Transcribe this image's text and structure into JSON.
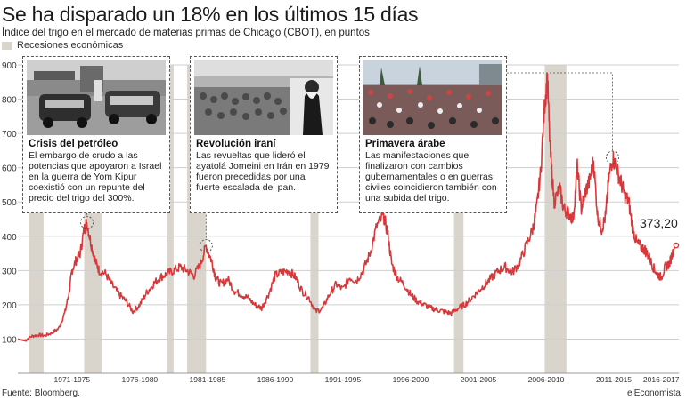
{
  "header": {
    "title": "Se ha disparado un 18% en los últimos 15 días",
    "subtitle": "Índice del trigo en el mercado de materias primas de Chicago (CBOT), en puntos",
    "legend": "Recesiones económicas"
  },
  "footer": {
    "source": "Fuente: Bloomberg.",
    "brand": "elEconomista"
  },
  "callouts": [
    {
      "title": "Crisis del petróleo",
      "text": "El embargo de crudo a las potencias que apoyaron a Israel en la guerra de Yom Kipur coexistió con un repunte del precio del trigo del 300%.",
      "photo": "gas-station-photo"
    },
    {
      "title": "Revolución iraní",
      "text": "Las revueltas que lideró el ayatolá Jomeini en Irán en 1979 fueron precedidas por una fuerte escalada del pan.",
      "photo": "crowd-leader-photo"
    },
    {
      "title": "Primavera árabe",
      "text": "Las manifestaciones que finalizaron con cambios gubernamentales o en guerras civiles coincidieron también con una subida del trigo.",
      "photo": "protest-crowd-photo"
    }
  ],
  "colors": {
    "line": "#d8383a",
    "recession": "#d9d4cc",
    "grid": "#cfcfcf"
  },
  "chart_data": {
    "type": "line",
    "title": "Se ha disparado un 18% en los últimos 15 días",
    "subtitle": "Índice del trigo en el mercado de materias primas de Chicago (CBOT), en puntos",
    "ylim": [
      0,
      900
    ],
    "xlim": [
      1969.0,
      2017.8
    ],
    "yticks": [
      100,
      200,
      300,
      400,
      500,
      600,
      700,
      800,
      900
    ],
    "ytick_labels": [
      "100",
      "200",
      "300",
      "400",
      "500",
      "600",
      "700",
      "800",
      "900"
    ],
    "xtick_labels": [
      "1971-1975",
      "1976-1980",
      "1981-1985",
      "1986-1990",
      "1991-1995",
      "1996-2000",
      "2001-2005",
      "2006-2010",
      "2011-2015",
      "2016-2017"
    ],
    "xtick_centers": [
      1973.0,
      1978.0,
      1983.0,
      1988.0,
      1993.0,
      1998.0,
      2003.0,
      2008.0,
      2013.0,
      2016.5
    ],
    "grid": "horizontal",
    "last_value_label": "373,20",
    "recessions": [
      [
        1969.8,
        1970.9
      ],
      [
        1973.9,
        1975.2
      ],
      [
        1980.0,
        1980.5
      ],
      [
        1981.5,
        1982.9
      ],
      [
        1990.6,
        1991.2
      ],
      [
        2001.2,
        2001.9
      ],
      [
        2007.9,
        2009.5
      ]
    ],
    "series": [
      {
        "x": [
          1969.0,
          1969.5,
          1970.0,
          1970.5,
          1971.0,
          1971.5,
          1972.0,
          1972.5,
          1972.8,
          1973.0,
          1973.3,
          1973.6,
          1973.9,
          1974.1,
          1974.4,
          1974.7,
          1975.0,
          1975.5,
          1976.0,
          1976.5,
          1977.0,
          1977.5,
          1978.0,
          1978.5,
          1979.0,
          1979.5,
          1980.0,
          1980.5,
          1981.0,
          1981.5,
          1982.0,
          1982.5,
          1982.9,
          1983.3,
          1983.6,
          1984.0,
          1984.5,
          1985.0,
          1985.5,
          1986.0,
          1986.5,
          1987.0,
          1987.5,
          1988.0,
          1988.5,
          1989.0,
          1989.5,
          1990.0,
          1990.5,
          1991.0,
          1991.5,
          1992.0,
          1992.5,
          1993.0,
          1993.5,
          1994.0,
          1994.5,
          1995.0,
          1995.5,
          1996.0,
          1996.3,
          1996.6,
          1997.0,
          1997.5,
          1998.0,
          1998.5,
          1999.0,
          1999.5,
          2000.0,
          2000.5,
          2001.0,
          2001.5,
          2002.0,
          2002.5,
          2003.0,
          2003.5,
          2004.0,
          2004.5,
          2005.0,
          2005.5,
          2006.0,
          2006.5,
          2007.0,
          2007.3,
          2007.6,
          2007.9,
          2008.1,
          2008.3,
          2008.6,
          2009.0,
          2009.3,
          2009.6,
          2010.0,
          2010.3,
          2010.6,
          2010.9,
          2011.2,
          2011.5,
          2011.8,
          2012.1,
          2012.4,
          2012.6,
          2012.9,
          2013.2,
          2013.5,
          2013.8,
          2014.1,
          2014.4,
          2014.7,
          2015.0,
          2015.3,
          2015.6,
          2015.9,
          2016.2,
          2016.5,
          2016.8,
          2017.1,
          2017.4,
          2017.6
        ],
        "y": [
          100,
          95,
          108,
          112,
          110,
          118,
          130,
          180,
          240,
          300,
          330,
          350,
          420,
          440,
          380,
          330,
          300,
          290,
          255,
          230,
          210,
          180,
          200,
          235,
          260,
          280,
          290,
          300,
          310,
          300,
          285,
          320,
          372,
          330,
          280,
          260,
          275,
          240,
          230,
          220,
          200,
          190,
          230,
          285,
          295,
          300,
          280,
          240,
          220,
          180,
          190,
          230,
          260,
          245,
          280,
          270,
          300,
          350,
          430,
          460,
          410,
          320,
          280,
          260,
          230,
          210,
          200,
          190,
          185,
          180,
          175,
          190,
          200,
          220,
          240,
          260,
          280,
          300,
          310,
          295,
          320,
          370,
          420,
          480,
          590,
          790,
          860,
          650,
          500,
          540,
          480,
          470,
          450,
          600,
          480,
          530,
          560,
          620,
          460,
          420,
          460,
          560,
          630,
          600,
          560,
          520,
          500,
          420,
          380,
          370,
          360,
          340,
          310,
          290,
          280,
          310,
          320,
          360,
          373.2
        ]
      }
    ],
    "highlights": [
      {
        "x": 1974.1,
        "y": 440
      },
      {
        "x": 1982.9,
        "y": 372
      },
      {
        "x": 2012.9,
        "y": 630
      }
    ]
  }
}
